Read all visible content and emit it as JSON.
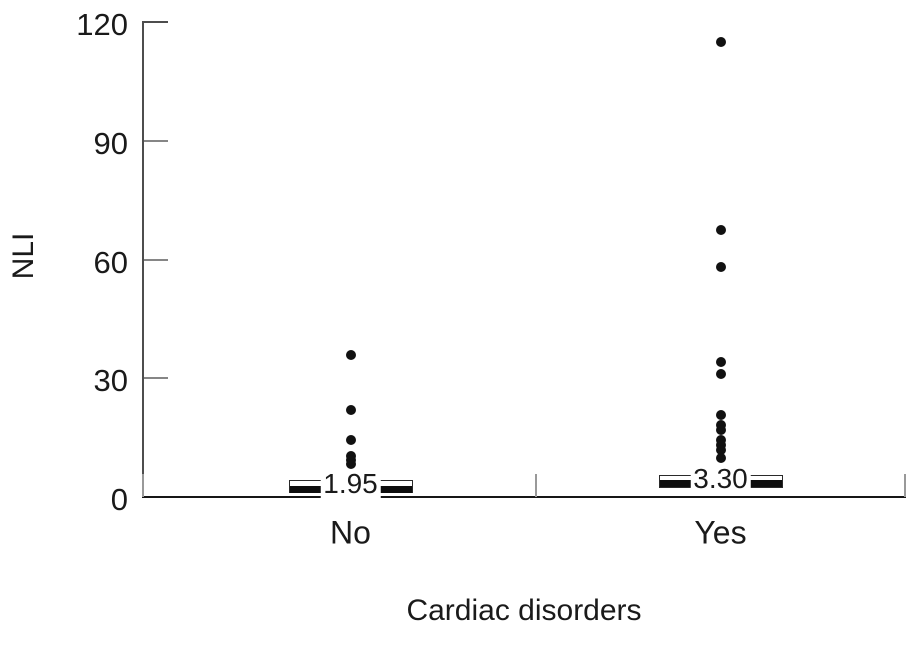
{
  "figure": {
    "background": "#ffffff",
    "text_color": "#1a1a1a",
    "y_axis_color": "#4d4d4d",
    "x_axis_color": "#161616",
    "tick_color": "#868686",
    "dot_color": "#111111"
  },
  "chart_data": {
    "type": "box",
    "title": "",
    "xlabel": "Cardiac disorders",
    "ylabel": "NLI",
    "ylim": [
      0,
      120
    ],
    "yticks": [
      0,
      30,
      60,
      90,
      120
    ],
    "ytick_labels": [
      "0",
      "30",
      "60",
      "90",
      "120"
    ],
    "categories": [
      "No",
      "Yes"
    ],
    "grid": false,
    "legend": null,
    "groups": [
      {
        "label": "No",
        "median": 1.95,
        "median_label": "1.95",
        "q1": 1.0,
        "q3": 4.4,
        "outlier_points": [
          36,
          22.1,
          14.4,
          10.4,
          9.4,
          8.4
        ]
      },
      {
        "label": "Yes",
        "median": 3.3,
        "median_label": "3.30",
        "q1": 2.2,
        "q3": 5.5,
        "outlier_points": [
          115,
          67.5,
          58,
          34,
          31,
          20.7,
          18.3,
          17,
          14.5,
          13.2,
          12,
          9.9
        ]
      }
    ]
  }
}
